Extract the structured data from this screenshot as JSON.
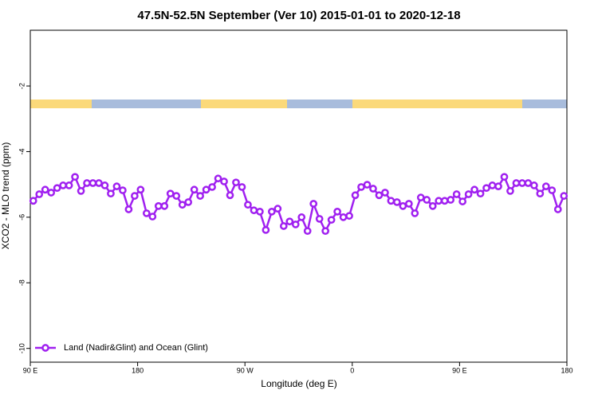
{
  "chart_data": {
    "type": "line",
    "title": "47.5N-52.5N September (Ver 10)   2015-01-01 to 2020-12-18",
    "x_label": "Longitude (deg E)",
    "y_label": "XCO2 - MLO trend (ppm)",
    "xlim": [
      90,
      540
    ],
    "ylim": [
      -10.42,
      -0.3
    ],
    "xticks": [
      {
        "value": 90,
        "label": "90 E"
      },
      180,
      {
        "value": 270,
        "label": "90 W"
      },
      {
        "value": 360,
        "label": "0"
      },
      {
        "value": 450,
        "label": "90 E"
      },
      {
        "value": 540,
        "label": "180"
      }
    ],
    "yticks": [
      -2,
      -4,
      -6,
      -8,
      -10
    ],
    "legend": "bottom-left",
    "x": [
      92.5,
      97.5,
      102.5,
      107.5,
      112.5,
      117.5,
      122.5,
      127.5,
      132.5,
      137.5,
      142.5,
      147.5,
      152.5,
      157.5,
      162.5,
      167.5,
      172.5,
      177.5,
      182.5,
      187.5,
      192.5,
      197.5,
      202.5,
      207.5,
      212.5,
      217.5,
      222.5,
      227.5,
      232.5,
      237.5,
      242.5,
      247.5,
      252.5,
      257.5,
      262.5,
      267.5,
      272.5,
      277.5,
      282.5,
      287.5,
      292.5,
      297.5,
      302.5,
      307.5,
      312.5,
      317.5,
      322.5,
      327.5,
      332.5,
      337.5,
      342.5,
      347.5,
      352.5,
      357.5,
      362.5,
      367.5,
      372.5,
      377.5,
      382.5,
      387.5,
      392.5,
      397.5,
      402.5,
      407.5,
      412.5,
      417.5,
      422.5,
      427.5,
      432.5,
      437.5,
      442.5,
      447.5,
      452.5,
      457.5,
      462.5,
      467.5,
      472.5,
      477.5,
      482.5,
      487.5,
      492.5,
      497.5,
      502.5,
      507.5,
      512.5,
      517.5,
      522.5,
      527.5,
      532.5,
      537.5
    ],
    "series": [
      {
        "name": "Land (Nadir&Glint) and Ocean (Glint)",
        "color": "#a020f0",
        "values": [
          -5.5,
          -5.3,
          -5.16,
          -5.25,
          -5.11,
          -5.03,
          -5.03,
          -4.77,
          -5.2,
          -4.96,
          -4.96,
          -4.96,
          -5.03,
          -5.28,
          -5.06,
          -5.18,
          -5.76,
          -5.35,
          -5.16,
          -5.88,
          -5.98,
          -5.66,
          -5.66,
          -5.28,
          -5.35,
          -5.62,
          -5.54,
          -5.16,
          -5.35,
          -5.16,
          -5.08,
          -4.82,
          -4.91,
          -5.33,
          -4.94,
          -5.08,
          -5.62,
          -5.79,
          -5.83,
          -6.39,
          -5.83,
          -5.74,
          -6.27,
          -6.13,
          -6.22,
          -6.0,
          -6.42,
          -5.59,
          -6.05,
          -6.42,
          -6.08,
          -5.83,
          -6.0,
          -5.96,
          -5.33,
          -5.08,
          -5.01,
          -5.13,
          -5.33,
          -5.25,
          -5.5,
          -5.54,
          -5.66,
          -5.59,
          -5.88,
          -5.4,
          -5.47,
          -5.66,
          -5.5,
          -5.5,
          -5.47,
          -5.3,
          -5.52,
          -5.3,
          -5.16,
          -5.28,
          -5.11,
          -5.03,
          -5.06,
          -4.77,
          -5.2,
          -4.96,
          -4.96,
          -4.96,
          -5.03,
          -5.28,
          -5.06,
          -5.18,
          -5.76,
          -5.35
        ]
      }
    ]
  }
}
